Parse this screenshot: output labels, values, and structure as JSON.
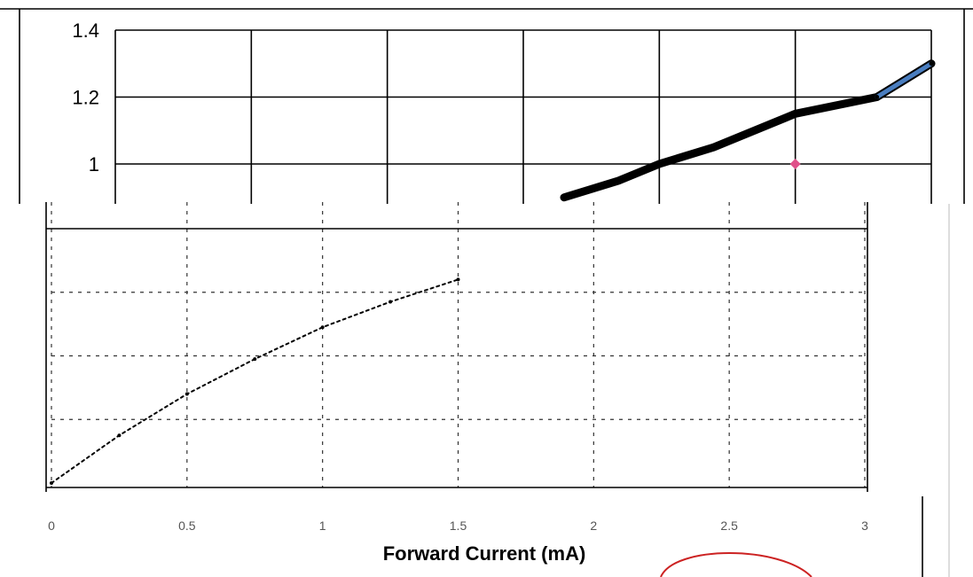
{
  "colors": {
    "background": "#ffffff",
    "upper_series": "#4a7ec0",
    "lower_series": "#000000",
    "marker": "#e0508a",
    "ellipse": "#cc2222"
  },
  "chart_data": [
    {
      "type": "line",
      "title": "",
      "xlabel": "",
      "ylabel": "",
      "ylim": [
        0.9,
        1.4
      ],
      "y_ticks": [
        "1.4",
        "1.2",
        "1"
      ],
      "grid": true,
      "series": [
        {
          "x": [
            1.65,
            1.85,
            2.0,
            2.2,
            2.5,
            2.8,
            3.0
          ],
          "y": [
            0.9,
            0.95,
            1.0,
            1.05,
            1.15,
            1.2,
            1.3
          ]
        }
      ]
    },
    {
      "type": "line",
      "title": "",
      "xlabel": "Forward Current (mA)",
      "ylabel": "",
      "xlim": [
        0,
        3
      ],
      "x_ticks": [
        "0",
        "0.5",
        "1",
        "1.5",
        "2",
        "2.5",
        "3"
      ],
      "ylim": [
        0,
        4
      ],
      "grid": true,
      "series": [
        {
          "x": [
            0,
            0.25,
            0.5,
            0.75,
            1.0,
            1.25,
            1.5
          ],
          "y": [
            0,
            0.75,
            1.4,
            1.95,
            2.45,
            2.85,
            3.2
          ]
        }
      ]
    }
  ]
}
